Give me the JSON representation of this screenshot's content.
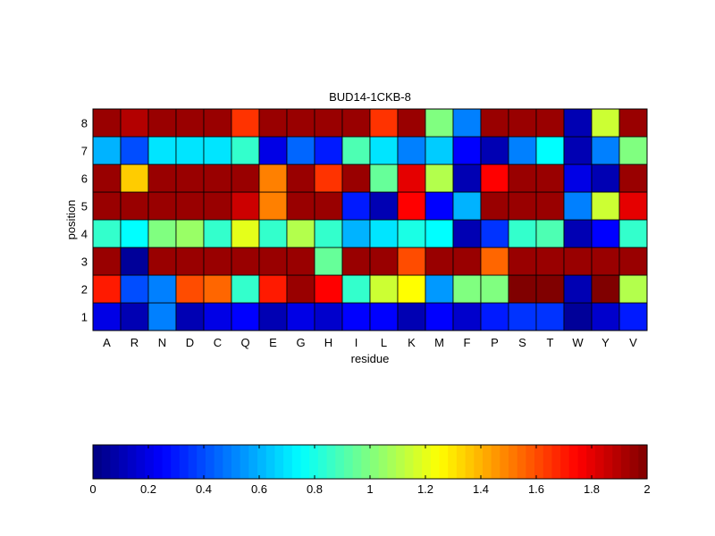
{
  "chart_data": [
    {
      "type": "heatmap",
      "title": "BUD14-1CKB-8",
      "xlabel": "residue",
      "ylabel": "position",
      "x_categories": [
        "A",
        "R",
        "N",
        "D",
        "C",
        "Q",
        "E",
        "G",
        "H",
        "I",
        "L",
        "K",
        "M",
        "F",
        "P",
        "S",
        "T",
        "W",
        "Y",
        "V"
      ],
      "y_categories": [
        "1",
        "2",
        "3",
        "4",
        "5",
        "6",
        "7",
        "8"
      ],
      "colormap": "jet",
      "value_range": [
        0,
        2
      ],
      "values": [
        [
          0.2,
          0.1,
          0.5,
          0.1,
          0.2,
          0.25,
          0.1,
          0.2,
          0.15,
          0.25,
          0.25,
          0.1,
          0.25,
          0.15,
          0.3,
          0.35,
          0.35,
          0.05,
          0.15,
          0.3
        ],
        [
          1.7,
          0.4,
          0.5,
          1.6,
          1.55,
          0.85,
          1.7,
          1.95,
          1.75,
          0.85,
          1.15,
          1.25,
          0.55,
          1.0,
          1.0,
          2.0,
          2.0,
          0.1,
          2.0,
          1.1
        ],
        [
          1.95,
          0.05,
          1.95,
          1.95,
          1.95,
          1.95,
          1.95,
          1.95,
          0.95,
          1.95,
          1.95,
          1.6,
          1.95,
          1.95,
          1.55,
          1.95,
          1.95,
          1.95,
          1.95,
          1.95
        ],
        [
          0.85,
          0.75,
          1.0,
          1.05,
          0.85,
          1.2,
          0.85,
          1.1,
          0.85,
          0.6,
          0.7,
          0.8,
          0.75,
          0.1,
          0.35,
          0.85,
          0.9,
          0.1,
          0.25,
          0.85
        ],
        [
          1.95,
          1.95,
          1.95,
          1.95,
          1.95,
          1.85,
          1.5,
          1.95,
          1.95,
          0.3,
          0.1,
          1.75,
          0.25,
          0.6,
          1.95,
          1.95,
          1.95,
          0.5,
          1.15,
          1.8
        ],
        [
          1.95,
          1.35,
          1.95,
          1.95,
          1.95,
          1.95,
          1.5,
          1.95,
          1.65,
          1.95,
          0.95,
          1.8,
          1.1,
          0.1,
          1.75,
          1.95,
          1.95,
          0.2,
          0.1,
          1.95
        ],
        [
          0.6,
          0.4,
          0.7,
          0.7,
          0.7,
          0.85,
          0.2,
          0.45,
          0.3,
          0.9,
          0.7,
          0.5,
          0.65,
          0.25,
          0.1,
          0.5,
          0.75,
          0.1,
          0.5,
          1.0
        ],
        [
          1.95,
          1.9,
          1.95,
          1.95,
          1.95,
          1.65,
          1.95,
          1.95,
          1.95,
          1.95,
          1.65,
          1.95,
          1.0,
          0.5,
          1.95,
          1.95,
          1.95,
          0.1,
          1.15,
          1.95
        ]
      ]
    },
    {
      "type": "colorbar",
      "colormap": "jet",
      "range": [
        0,
        2
      ],
      "tick_labels": [
        "0",
        "0.2",
        "0.4",
        "0.6",
        "0.8",
        "1",
        "1.2",
        "1.4",
        "1.6",
        "1.8",
        "2"
      ]
    }
  ]
}
